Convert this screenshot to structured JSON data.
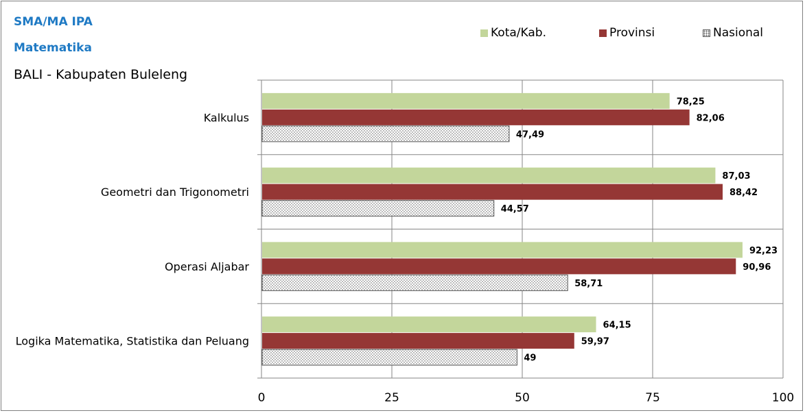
{
  "chart_data": {
    "type": "bar",
    "orientation": "horizontal",
    "title": "SMA/MA IPA",
    "subtitle": "Matematika",
    "region": "BALI - Kabupaten Buleleng",
    "categories": [
      "Kalkulus",
      "Geometri dan Trigonometri",
      "Operasi Aljabar",
      "Logika Matematika, Statistika dan Peluang"
    ],
    "series": [
      {
        "name": "Kota/Kab.",
        "color": "#c3d69b",
        "values": [
          78.25,
          87.03,
          92.23,
          64.15
        ],
        "labels": [
          "78,25",
          "87,03",
          "92,23",
          "64,15"
        ]
      },
      {
        "name": "Provinsi",
        "color": "#953735",
        "values": [
          82.06,
          88.42,
          90.96,
          59.97
        ],
        "labels": [
          "82,06",
          "88,42",
          "90,96",
          "59,97"
        ]
      },
      {
        "name": "Nasional",
        "color": "#ffffff",
        "pattern": "dots",
        "values": [
          47.49,
          44.57,
          58.71,
          49
        ],
        "labels": [
          "47,49",
          "44,57",
          "58,71",
          "49"
        ]
      }
    ],
    "xlim": [
      0,
      100
    ],
    "xticks": [
      0,
      25,
      50,
      75,
      100
    ],
    "xtick_labels": [
      "0",
      "25",
      "50",
      "75",
      "100"
    ],
    "grid": true,
    "legend_position": "top-right"
  }
}
